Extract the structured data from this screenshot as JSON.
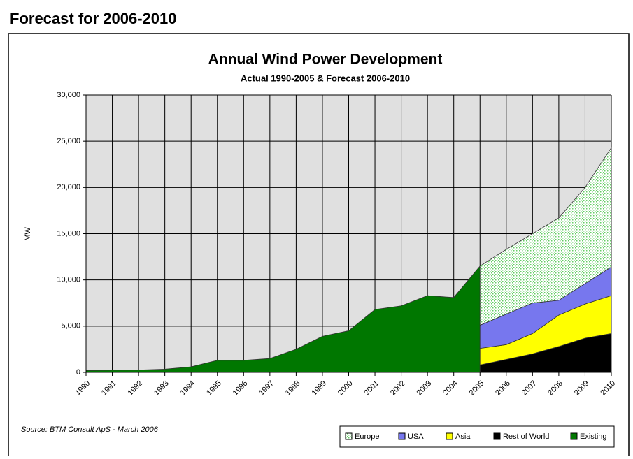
{
  "heading": "Forecast for 2006-2010",
  "chart_data": {
    "type": "area",
    "title": "Annual Wind Power Development",
    "subtitle": "Actual 1990-2005 & Forecast 2006-2010",
    "y_label": "MW",
    "source": "Source: BTM Consult ApS - March 2006",
    "categories": [
      "1990",
      "1991",
      "1992",
      "1993",
      "1994",
      "1995",
      "1996",
      "1997",
      "1998",
      "1999",
      "2000",
      "2001",
      "2002",
      "2003",
      "2004",
      "2005",
      "2006",
      "2007",
      "2008",
      "2009",
      "2010"
    ],
    "series": [
      {
        "name": "Europe",
        "color": "#ccffcc",
        "values": [
          null,
          null,
          null,
          null,
          null,
          null,
          null,
          null,
          null,
          null,
          null,
          null,
          null,
          null,
          null,
          6400,
          7000,
          7500,
          8900,
          10400,
          12900
        ]
      },
      {
        "name": "USA",
        "color": "#7777ee",
        "values": [
          null,
          null,
          null,
          null,
          null,
          null,
          null,
          null,
          null,
          null,
          null,
          null,
          null,
          null,
          null,
          2500,
          3300,
          3300,
          1600,
          2200,
          3100
        ]
      },
      {
        "name": "Asia",
        "color": "#ffff00",
        "values": [
          null,
          null,
          null,
          null,
          null,
          null,
          null,
          null,
          null,
          null,
          null,
          null,
          null,
          null,
          null,
          1800,
          1600,
          2200,
          3400,
          3700,
          4100
        ]
      },
      {
        "name": "Rest of World",
        "color": "#000000",
        "values": [
          null,
          null,
          null,
          null,
          null,
          null,
          null,
          null,
          null,
          null,
          null,
          null,
          null,
          null,
          null,
          800,
          1400,
          2000,
          2800,
          3700,
          4200
        ]
      },
      {
        "name": "Existing",
        "color": "#007700",
        "values": [
          200,
          240,
          250,
          350,
          600,
          1300,
          1300,
          1500,
          2500,
          3900,
          4500,
          6800,
          7200,
          8300,
          8100,
          11500,
          null,
          null,
          null,
          null,
          null
        ]
      }
    ],
    "ylim": [
      0,
      30000
    ],
    "yticks": [
      0,
      {
        "value": 5000,
        "label": "5,000"
      },
      {
        "value": 10000,
        "label": "10,000"
      },
      {
        "value": 15000,
        "label": "15,000"
      },
      {
        "value": 20000,
        "label": "20,000"
      },
      {
        "value": 25000,
        "label": "25,000"
      },
      {
        "value": 30000,
        "label": "30,000"
      }
    ],
    "grid": true
  }
}
